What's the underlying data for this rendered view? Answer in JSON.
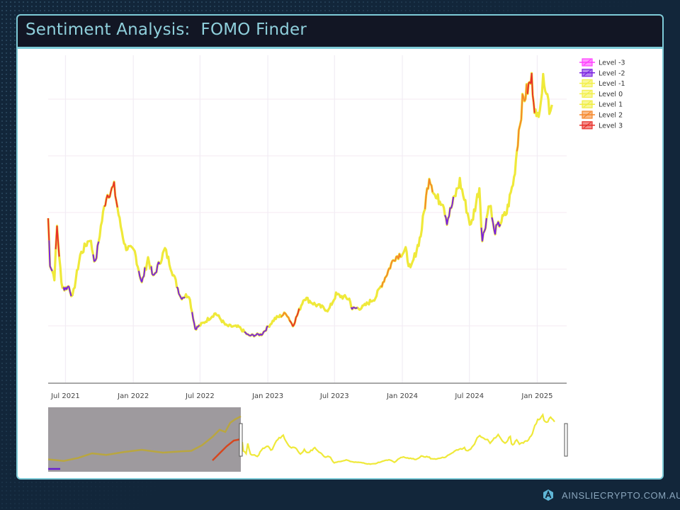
{
  "header": {
    "title": "Sentiment Analysis:  FOMO Finder"
  },
  "footer": {
    "brand": "AINSLIECRYPTO.COM.AU",
    "logo_icon": "ainslie-logo-icon"
  },
  "colors": {
    "frame_border": "#7ecbd8",
    "title_bg": "#121624",
    "title_text": "#8fd0dc",
    "page_bg": "#12263a",
    "range_shade": "#9e9a9e"
  },
  "legend": {
    "items": [
      {
        "label": "Level -3",
        "color": "#ff40ff"
      },
      {
        "label": "Level -2",
        "color": "#7a22e0"
      },
      {
        "label": "Level -1",
        "color": "#f3f04a"
      },
      {
        "label": "Level 0",
        "color": "#f3f04a"
      },
      {
        "label": "Level 1",
        "color": "#f0ee40"
      },
      {
        "label": "Level 2",
        "color": "#f5872a"
      },
      {
        "label": "Level 3",
        "color": "#e8302a"
      }
    ]
  },
  "chart_data": {
    "type": "line",
    "title": "Sentiment Analysis: FOMO Finder",
    "xlabel": "",
    "ylabel": "",
    "y_tick_labels_visible": false,
    "grid": true,
    "legend_position": "top-right",
    "x_tick_labels": [
      "Jul 2021",
      "Jan 2022",
      "Jul 2022",
      "Jan 2023",
      "Jul 2023",
      "Jan 2024",
      "Jul 2024",
      "Jan 2025"
    ],
    "x_range": [
      "2021-05",
      "2025-02"
    ],
    "ylim_estimated": [
      10000,
      115000
    ],
    "y_gridlines_estimated": [
      20000,
      40000,
      60000,
      80000,
      100000
    ],
    "series_note": "Price line colored by sentiment level (Level -3 to Level 3); values approximated from pixels",
    "points": [
      {
        "date": "2021-05-15",
        "value": 58000,
        "level": 3
      },
      {
        "date": "2021-05-20",
        "value": 42000,
        "level": -2
      },
      {
        "date": "2021-06-01",
        "value": 37000,
        "level": 0
      },
      {
        "date": "2021-06-08",
        "value": 55000,
        "level": 3
      },
      {
        "date": "2021-06-20",
        "value": 35000,
        "level": 0
      },
      {
        "date": "2021-06-28",
        "value": 33000,
        "level": -2
      },
      {
        "date": "2021-07-10",
        "value": 34000,
        "level": -2
      },
      {
        "date": "2021-07-20",
        "value": 30000,
        "level": 0
      },
      {
        "date": "2021-08-10",
        "value": 45000,
        "level": 0
      },
      {
        "date": "2021-09-05",
        "value": 51000,
        "level": 0
      },
      {
        "date": "2021-09-20",
        "value": 42000,
        "level": -2
      },
      {
        "date": "2021-10-05",
        "value": 55000,
        "level": 0
      },
      {
        "date": "2021-10-20",
        "value": 66000,
        "level": 3
      },
      {
        "date": "2021-11-10",
        "value": 69000,
        "level": 3
      },
      {
        "date": "2021-11-25",
        "value": 57000,
        "level": 0
      },
      {
        "date": "2021-12-10",
        "value": 48000,
        "level": 0
      },
      {
        "date": "2022-01-05",
        "value": 46000,
        "level": 0
      },
      {
        "date": "2022-01-24",
        "value": 35000,
        "level": -2
      },
      {
        "date": "2022-02-10",
        "value": 44000,
        "level": 0
      },
      {
        "date": "2022-02-24",
        "value": 37000,
        "level": -2
      },
      {
        "date": "2022-03-28",
        "value": 47000,
        "level": 0
      },
      {
        "date": "2022-04-15",
        "value": 40000,
        "level": 0
      },
      {
        "date": "2022-05-10",
        "value": 30000,
        "level": -2
      },
      {
        "date": "2022-06-01",
        "value": 31000,
        "level": 0
      },
      {
        "date": "2022-06-18",
        "value": 19000,
        "level": -2
      },
      {
        "date": "2022-07-10",
        "value": 21000,
        "level": 0
      },
      {
        "date": "2022-08-12",
        "value": 24500,
        "level": 0
      },
      {
        "date": "2022-09-10",
        "value": 20000,
        "level": 0
      },
      {
        "date": "2022-10-15",
        "value": 19500,
        "level": 0
      },
      {
        "date": "2022-11-10",
        "value": 16500,
        "level": -2
      },
      {
        "date": "2022-12-15",
        "value": 17000,
        "level": -2
      },
      {
        "date": "2023-01-20",
        "value": 22500,
        "level": 0
      },
      {
        "date": "2023-02-20",
        "value": 24500,
        "level": 2
      },
      {
        "date": "2023-03-10",
        "value": 20000,
        "level": 3
      },
      {
        "date": "2023-04-10",
        "value": 30000,
        "level": 0
      },
      {
        "date": "2023-05-10",
        "value": 27500,
        "level": 0
      },
      {
        "date": "2023-06-15",
        "value": 25500,
        "level": 0
      },
      {
        "date": "2023-07-05",
        "value": 31000,
        "level": 0
      },
      {
        "date": "2023-08-10",
        "value": 29500,
        "level": 0
      },
      {
        "date": "2023-08-18",
        "value": 26000,
        "level": -2
      },
      {
        "date": "2023-09-15",
        "value": 26500,
        "level": 0
      },
      {
        "date": "2023-10-20",
        "value": 30000,
        "level": 0
      },
      {
        "date": "2023-11-15",
        "value": 37000,
        "level": 2
      },
      {
        "date": "2023-12-10",
        "value": 44000,
        "level": 2
      },
      {
        "date": "2024-01-10",
        "value": 46500,
        "level": 0
      },
      {
        "date": "2024-01-23",
        "value": 39500,
        "level": 0
      },
      {
        "date": "2024-02-20",
        "value": 52000,
        "level": 0
      },
      {
        "date": "2024-03-14",
        "value": 73000,
        "level": 2
      },
      {
        "date": "2024-04-01",
        "value": 65000,
        "level": 0
      },
      {
        "date": "2024-04-20",
        "value": 64000,
        "level": 0
      },
      {
        "date": "2024-05-01",
        "value": 57000,
        "level": -2
      },
      {
        "date": "2024-06-05",
        "value": 71000,
        "level": 0
      },
      {
        "date": "2024-07-05",
        "value": 55000,
        "level": 0
      },
      {
        "date": "2024-07-28",
        "value": 69000,
        "level": 0
      },
      {
        "date": "2024-08-05",
        "value": 50000,
        "level": -2
      },
      {
        "date": "2024-08-25",
        "value": 64000,
        "level": 0
      },
      {
        "date": "2024-09-06",
        "value": 53000,
        "level": -2
      },
      {
        "date": "2024-10-10",
        "value": 60000,
        "level": 0
      },
      {
        "date": "2024-10-30",
        "value": 72000,
        "level": 0
      },
      {
        "date": "2024-11-12",
        "value": 89000,
        "level": 2
      },
      {
        "date": "2024-11-22",
        "value": 99000,
        "level": 2
      },
      {
        "date": "2024-12-17",
        "value": 107000,
        "level": 3
      },
      {
        "date": "2024-12-30",
        "value": 92000,
        "level": 0
      },
      {
        "date": "2025-01-20",
        "value": 108000,
        "level": 0
      },
      {
        "date": "2025-02-03",
        "value": 97000,
        "level": 0
      },
      {
        "date": "2025-02-10",
        "value": 98000,
        "level": 0
      }
    ],
    "range_slider": {
      "visible": true,
      "full_range_start": "2010",
      "selected_from": "2021-05",
      "selected_to": "2025-02"
    }
  }
}
